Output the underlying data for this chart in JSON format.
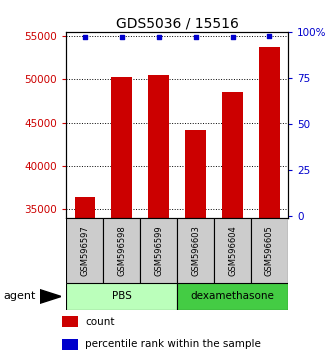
{
  "title": "GDS5036 / 15516",
  "samples": [
    "GSM596597",
    "GSM596598",
    "GSM596599",
    "GSM596603",
    "GSM596604",
    "GSM596605"
  ],
  "counts": [
    36400,
    50300,
    50500,
    44100,
    48500,
    53700
  ],
  "percentile_ranks": [
    97,
    97,
    97,
    97,
    97,
    98
  ],
  "ylim_left": [
    34000,
    55500
  ],
  "ylim_right": [
    -0.95238,
    100
  ],
  "yticks_left": [
    35000,
    40000,
    45000,
    50000,
    55000
  ],
  "yticks_right": [
    0,
    25,
    50,
    75,
    100
  ],
  "yticklabels_right": [
    "0",
    "25",
    "50",
    "75",
    "100%"
  ],
  "bar_color": "#cc0000",
  "dot_color": "#0000cc",
  "groups": [
    {
      "label": "PBS",
      "indices": [
        0,
        1,
        2
      ],
      "color": "#bbffbb"
    },
    {
      "label": "dexamethasone",
      "indices": [
        3,
        4,
        5
      ],
      "color": "#44cc44"
    }
  ],
  "group_label": "agent",
  "legend_count_label": "count",
  "legend_percentile_label": "percentile rank within the sample",
  "background_color": "#ffffff",
  "sample_box_color": "#cccccc",
  "tick_fontsize": 7.5
}
